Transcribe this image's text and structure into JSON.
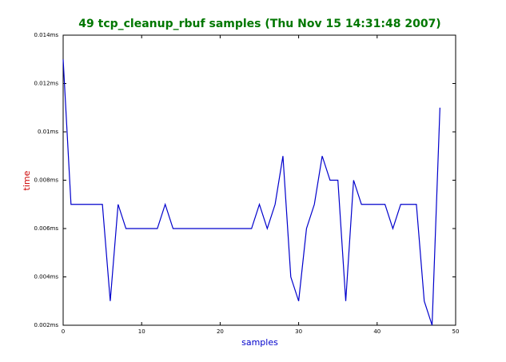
{
  "chart_data": {
    "type": "line",
    "title": "49 tcp_cleanup_rbuf samples (Thu Nov 15 14:31:48 2007)",
    "xlabel": "samples",
    "ylabel": "time",
    "x": [
      0,
      1,
      2,
      3,
      4,
      5,
      6,
      7,
      8,
      9,
      10,
      11,
      12,
      13,
      14,
      15,
      16,
      17,
      18,
      19,
      20,
      21,
      22,
      23,
      24,
      25,
      26,
      27,
      28,
      29,
      30,
      31,
      32,
      33,
      34,
      35,
      36,
      37,
      38,
      39,
      40,
      41,
      42,
      43,
      44,
      45,
      46,
      47,
      48
    ],
    "series": [
      {
        "name": "tcp_cleanup_rbuf",
        "color": "#0000cc",
        "values": [
          0.013,
          0.007,
          0.007,
          0.007,
          0.007,
          0.007,
          0.003,
          0.007,
          0.006,
          0.006,
          0.006,
          0.006,
          0.006,
          0.007,
          0.006,
          0.006,
          0.006,
          0.006,
          0.006,
          0.006,
          0.006,
          0.006,
          0.006,
          0.006,
          0.006,
          0.007,
          0.006,
          0.007,
          0.009,
          0.004,
          0.003,
          0.006,
          0.007,
          0.009,
          0.008,
          0.008,
          0.003,
          0.008,
          0.007,
          0.007,
          0.007,
          0.007,
          0.006,
          0.007,
          0.007,
          0.007,
          0.003,
          0.002,
          0.011
        ]
      }
    ],
    "xlim": [
      0,
      50
    ],
    "xticks": [
      0,
      10,
      20,
      30,
      40,
      50
    ],
    "ylim": [
      0.002,
      0.014
    ],
    "yticks": [
      {
        "value": 0.002,
        "label": "0.002ms"
      },
      {
        "value": 0.004,
        "label": "0.004ms"
      },
      {
        "value": 0.006,
        "label": "0.006ms"
      },
      {
        "value": 0.008,
        "label": "0.008ms"
      },
      {
        "value": 0.01,
        "label": "0.01ms"
      },
      {
        "value": 0.012,
        "label": "0.012ms"
      },
      {
        "value": 0.014,
        "label": "0.014ms"
      }
    ]
  }
}
